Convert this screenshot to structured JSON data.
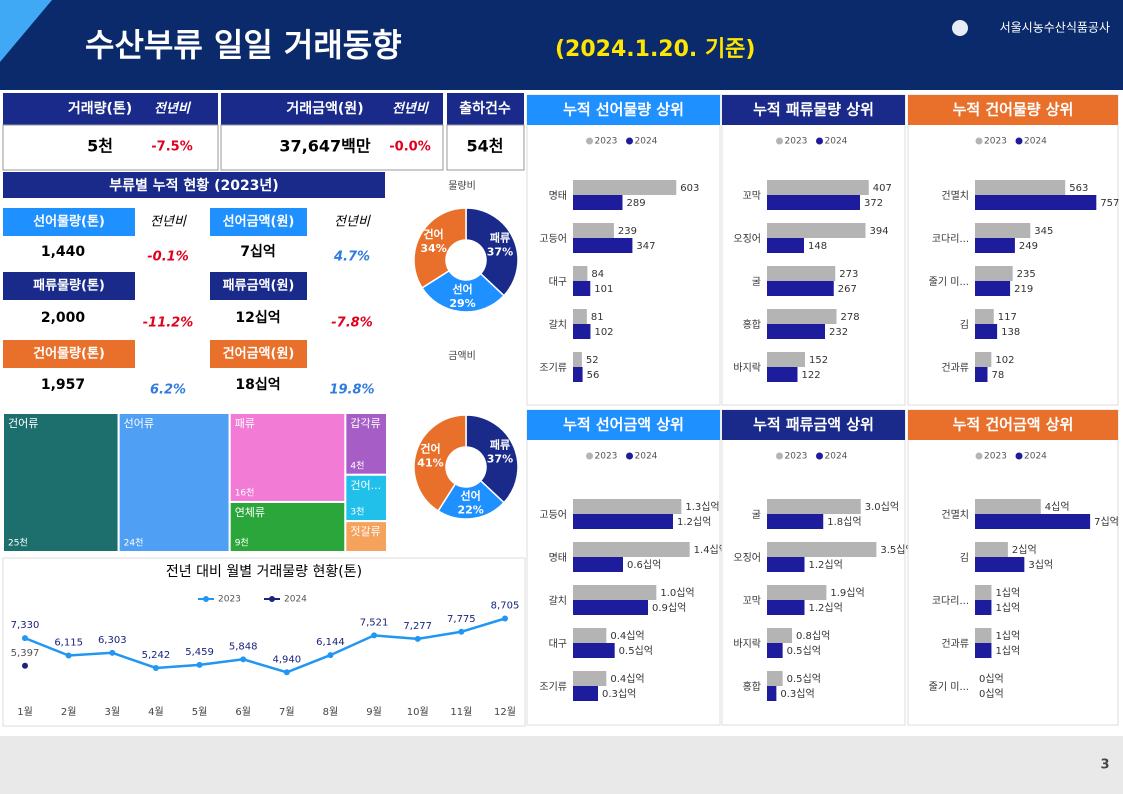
{
  "header": {
    "title": "수산부류 일일 거래동향",
    "date": "(2024.1.20. 기준)",
    "org": "서울시농수산식품공사",
    "page": "3"
  },
  "kpi": [
    {
      "label": "거래량(톤)",
      "yoy": "전년비",
      "value": "5천",
      "change": "-7.5%"
    },
    {
      "label": "거래금액(원)",
      "yoy": "전년비",
      "value": "37,647백만",
      "change": "-0.0%"
    },
    {
      "label": "출하건수",
      "value": "54천"
    }
  ],
  "summary": {
    "title": "부류별 누적 현황 (2023년)",
    "yoy_label": "전년비",
    "items": [
      {
        "label": "선어물량(톤)",
        "value": "1,440",
        "change": "-0.1%",
        "color": "#1e90ff"
      },
      {
        "label": "선어금액(원)",
        "value": "7십억",
        "change": "4.7%",
        "color": "#1e90ff"
      },
      {
        "label": "패류물량(톤)",
        "value": "2,000",
        "change": "-11.2%",
        "color": "#1a2a8a"
      },
      {
        "label": "패류금액(원)",
        "value": "12십억",
        "change": "-7.8%",
        "color": "#1a2a8a"
      },
      {
        "label": "건어물량(톤)",
        "value": "1,957",
        "change": "6.2%",
        "color": "#e8702a"
      },
      {
        "label": "건어금액(원)",
        "value": "18십억",
        "change": "19.8%",
        "color": "#e8702a"
      }
    ]
  },
  "chart_data": [
    {
      "type": "donut",
      "title": "물량비",
      "categories": [
        "패류",
        "선어",
        "건어"
      ],
      "values": [
        37,
        29,
        34
      ],
      "value_labels": [
        "37%",
        "29%",
        "34%"
      ],
      "colors": [
        "#1a2a8a",
        "#1e90ff",
        "#e8702a"
      ]
    },
    {
      "type": "donut",
      "title": "금액비",
      "categories": [
        "패류",
        "선어",
        "건어"
      ],
      "values": [
        37,
        22,
        41
      ],
      "value_labels": [
        "37%",
        "22%",
        "41%"
      ],
      "colors": [
        "#1a2a8a",
        "#1e90ff",
        "#e8702a"
      ]
    },
    {
      "type": "treemap",
      "categories": [
        "건어류",
        "선어류",
        "패류",
        "연체류",
        "갑각류",
        "건어...",
        "젓갈류"
      ],
      "values": [
        25,
        24,
        16,
        9,
        4,
        3,
        2
      ],
      "value_labels": [
        "25천",
        "24천",
        "16천",
        "9천",
        "4천",
        "3천",
        null
      ],
      "colors": [
        "#1c6f6c",
        "#4f9ff5",
        "#f27bd6",
        "#2ba63b",
        "#a65ec6",
        "#20c0ea",
        "#f5a25c"
      ]
    },
    {
      "type": "line",
      "title": "전년 대비 월별 거래물량 현황(톤)",
      "categories": [
        "1월",
        "2월",
        "3월",
        "4월",
        "5월",
        "6월",
        "7월",
        "8월",
        "9월",
        "10월",
        "11월",
        "12월"
      ],
      "ylim": [
        3000,
        10000
      ],
      "series": [
        {
          "name": "2023",
          "color": "#2196f3",
          "values": [
            7330,
            6115,
            6303,
            5242,
            5459,
            5848,
            4940,
            6144,
            7521,
            7277,
            7775,
            8705
          ],
          "value_labels": [
            "7,330",
            "6,115",
            "6,303",
            "5,242",
            "5,459",
            "5,848",
            "4,940",
            "6,144",
            "7,521",
            "7,277",
            "7,775",
            "8,705"
          ]
        },
        {
          "name": "2024",
          "color": "#1a237e",
          "values": [
            5397,
            null,
            null,
            null,
            null,
            null,
            null,
            null,
            null,
            null,
            null,
            null
          ],
          "value_labels": [
            "5,397",
            null,
            null,
            null,
            null,
            null,
            null,
            null,
            null,
            null,
            null,
            null
          ]
        }
      ]
    },
    {
      "type": "hbar",
      "title": "누적 선어물량 상위",
      "header_color": "#1e90ff",
      "categories": [
        "명태",
        "고등어",
        "대구",
        "갈치",
        "조기류"
      ],
      "xlim": [
        0,
        730
      ],
      "series": [
        {
          "name": "2023",
          "color": "#b4b4b4",
          "values": [
            603,
            239,
            84,
            81,
            52
          ]
        },
        {
          "name": "2024",
          "color": "#1c1c9c",
          "values": [
            289,
            347,
            101,
            102,
            56
          ]
        }
      ]
    },
    {
      "type": "hbar",
      "title": "누적 패류물량 상위",
      "header_color": "#1a2a8a",
      "categories": [
        "꼬막",
        "오징어",
        "굴",
        "홍합",
        "바지락"
      ],
      "xlim": [
        0,
        500
      ],
      "series": [
        {
          "name": "2023",
          "color": "#b4b4b4",
          "values": [
            407,
            394,
            273,
            278,
            152
          ]
        },
        {
          "name": "2024",
          "color": "#1c1c9c",
          "values": [
            372,
            148,
            267,
            232,
            122
          ]
        }
      ]
    },
    {
      "type": "hbar",
      "title": "누적 건어물량 상위",
      "header_color": "#e8702a",
      "categories": [
        "건멸치",
        "코다리...",
        "줄기 미...",
        "김",
        "건과류"
      ],
      "xlim": [
        0,
        780
      ],
      "series": [
        {
          "name": "2023",
          "color": "#b4b4b4",
          "values": [
            563,
            345,
            235,
            117,
            102
          ]
        },
        {
          "name": "2024",
          "color": "#1c1c9c",
          "values": [
            757,
            249,
            219,
            138,
            78
          ]
        }
      ]
    },
    {
      "type": "hbar",
      "title": "누적 선어금액 상위",
      "header_color": "#1e90ff",
      "categories": [
        "고등어",
        "명태",
        "갈치",
        "대구",
        "조기류"
      ],
      "xlim": [
        0,
        1.5
      ],
      "series": [
        {
          "name": "2023",
          "color": "#b4b4b4",
          "values": [
            1.3,
            1.4,
            1.0,
            0.4,
            0.4
          ],
          "value_labels": [
            "1.3십억",
            "1.4십억",
            "1.0십억",
            "0.4십억",
            "0.4십억"
          ]
        },
        {
          "name": "2024",
          "color": "#1c1c9c",
          "values": [
            1.2,
            0.6,
            0.9,
            0.5,
            0.3
          ],
          "value_labels": [
            "1.2십억",
            "0.6십억",
            "0.9십억",
            "0.5십억",
            "0.3십억"
          ]
        }
      ]
    },
    {
      "type": "hbar",
      "title": "누적 패류금액 상위",
      "header_color": "#1a2a8a",
      "categories": [
        "굴",
        "오징어",
        "꼬막",
        "바지락",
        "홍합"
      ],
      "xlim": [
        0,
        4
      ],
      "series": [
        {
          "name": "2023",
          "color": "#b4b4b4",
          "values": [
            3.0,
            3.5,
            1.9,
            0.8,
            0.5
          ],
          "value_labels": [
            "3.0십억",
            "3.5십억",
            "1.9십억",
            "0.8십억",
            "0.5십억"
          ]
        },
        {
          "name": "2024",
          "color": "#1c1c9c",
          "values": [
            1.8,
            1.2,
            1.2,
            0.5,
            0.3
          ],
          "value_labels": [
            "1.8십억",
            "1.2십억",
            "1.2십억",
            "0.5십억",
            "0.3십억"
          ]
        }
      ]
    },
    {
      "type": "hbar",
      "title": "누적 건어금액 상위",
      "header_color": "#e8702a",
      "categories": [
        "건멸치",
        "김",
        "코다리...",
        "건과류",
        "줄기 미..."
      ],
      "xlim": [
        0,
        7.6
      ],
      "series": [
        {
          "name": "2023",
          "color": "#b4b4b4",
          "values": [
            4,
            2,
            1,
            1,
            0
          ],
          "value_labels": [
            "4십억",
            "2십억",
            "1십억",
            "1십억",
            "0십억"
          ]
        },
        {
          "name": "2024",
          "color": "#1c1c9c",
          "values": [
            7,
            3,
            1,
            1,
            0
          ],
          "value_labels": [
            "7십억",
            "3십억",
            "1십억",
            "1십억",
            "0십억"
          ]
        }
      ]
    }
  ]
}
